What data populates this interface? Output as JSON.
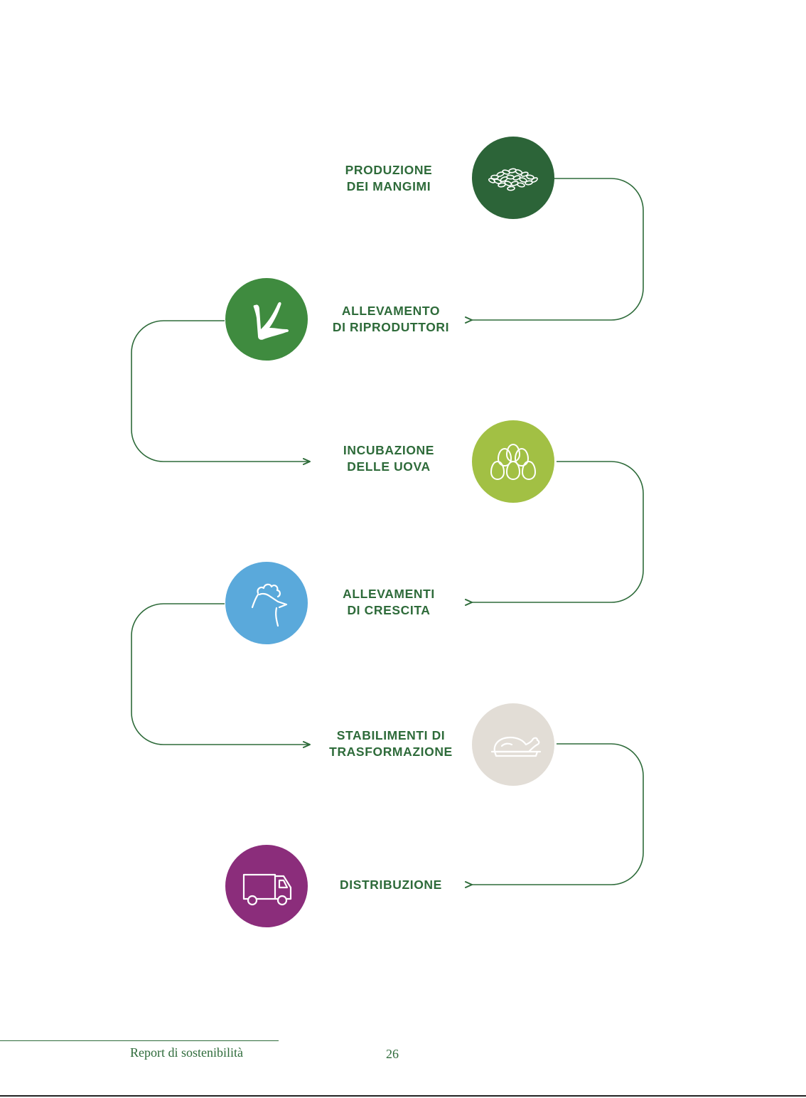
{
  "steps": [
    {
      "line1": "PRODUZIONE",
      "line2": "DEI MANGIMI",
      "icon": "feed-grains-icon",
      "color": "#2c6438"
    },
    {
      "line1": "ALLEVAMENTO",
      "line2": "DI RIPRODUTTORI",
      "icon": "bird-foot-icon",
      "color": "#3f8b3f"
    },
    {
      "line1": "INCUBAZIONE",
      "line2": "DELLE UOVA",
      "icon": "eggs-icon",
      "color": "#a2c044"
    },
    {
      "line1": "ALLEVAMENTI",
      "line2": "DI CRESCITA",
      "icon": "chicken-head-icon",
      "color": "#5aa9db"
    },
    {
      "line1": "STABILIMENTI DI",
      "line2": "TRASFORMAZIONE",
      "icon": "roast-chicken-icon",
      "color": "#e2ddd6"
    },
    {
      "line1": "DISTRIBUZIONE",
      "line2": "",
      "icon": "delivery-truck-icon",
      "color": "#8b2d7b"
    }
  ],
  "footer": {
    "title": "Report di sostenibilità",
    "page_number": "26"
  },
  "line_color": "#2e6b3a"
}
